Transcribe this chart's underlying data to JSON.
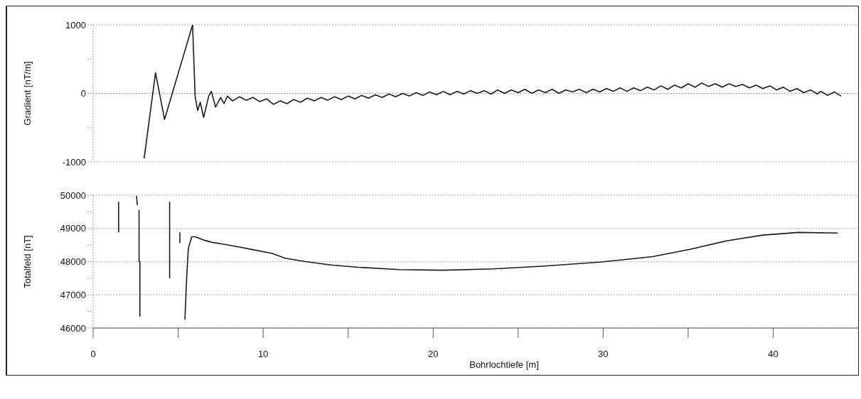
{
  "chart_data": [
    {
      "type": "line",
      "ylabel": "Gradient  [nT/m]",
      "xlim": [
        0,
        45
      ],
      "ylim": [
        -1000,
        1000
      ],
      "yticks": [
        -1000,
        {
          "value": -500,
          "label": null
        },
        0,
        {
          "value": 500,
          "label": null
        },
        1000
      ],
      "grid": "y",
      "tick_labels": "y",
      "legend": false,
      "series": [
        {
          "color": "#1a1a1a",
          "x": [
            3.0,
            3.67,
            4.2,
            5.85,
            6.0,
            6.15,
            6.3,
            6.5,
            6.8,
            6.95,
            7.2,
            7.5,
            7.7,
            7.9,
            8.2,
            8.6,
            9.0,
            9.4,
            9.8,
            10.2,
            10.6,
            11.0,
            11.4,
            11.8,
            12.2,
            12.6,
            13.0,
            13.4,
            13.8,
            14.2,
            14.6,
            15.0,
            15.4,
            15.8,
            16.2,
            16.6,
            17.0,
            17.4,
            17.8,
            18.2,
            18.6,
            19.0,
            19.4,
            19.8,
            20.2,
            20.6,
            21.0,
            21.4,
            21.8,
            22.2,
            22.6,
            23.0,
            23.4,
            23.8,
            24.2,
            24.6,
            25.0,
            25.4,
            25.8,
            26.2,
            26.6,
            27.0,
            27.4,
            27.8,
            28.2,
            28.6,
            29.0,
            29.4,
            29.8,
            30.2,
            30.6,
            31.0,
            31.4,
            31.8,
            32.2,
            32.6,
            33.0,
            33.4,
            33.8,
            34.2,
            34.6,
            35.0,
            35.4,
            35.8,
            36.2,
            36.6,
            37.0,
            37.4,
            37.8,
            38.2,
            38.6,
            39.0,
            39.4,
            39.8,
            40.2,
            40.6,
            41.0,
            41.4,
            41.8,
            42.2,
            42.6,
            42.8,
            43.2,
            43.6,
            44.0
          ],
          "values": [
            -950,
            300,
            -380,
            1000,
            -50,
            -250,
            -130,
            -350,
            -40,
            30,
            -200,
            -60,
            -150,
            -40,
            -110,
            -50,
            -100,
            -60,
            -120,
            -80,
            -160,
            -110,
            -150,
            -90,
            -130,
            -70,
            -110,
            -60,
            -100,
            -50,
            -90,
            -40,
            -80,
            -30,
            -70,
            -20,
            -60,
            -10,
            -50,
            0,
            -40,
            10,
            -30,
            20,
            -20,
            30,
            -20,
            30,
            -10,
            40,
            0,
            40,
            -10,
            50,
            0,
            50,
            10,
            60,
            0,
            50,
            10,
            60,
            0,
            50,
            20,
            60,
            10,
            60,
            20,
            70,
            30,
            80,
            30,
            80,
            40,
            90,
            50,
            110,
            60,
            120,
            80,
            140,
            90,
            150,
            100,
            140,
            90,
            140,
            100,
            130,
            80,
            120,
            70,
            110,
            50,
            90,
            30,
            70,
            10,
            50,
            -10,
            30,
            -30,
            20,
            -40
          ]
        }
      ]
    },
    {
      "type": "line",
      "ylabel": "Totalfeld [nT]",
      "xlabel": "Bohrlochtiefe [m]",
      "xlim": [
        0,
        45
      ],
      "xticks": [
        0,
        {
          "value": 5,
          "label": null
        },
        10,
        {
          "value": 15,
          "label": null
        },
        20,
        {
          "value": 25,
          "label": null
        },
        30,
        {
          "value": 35,
          "label": null
        },
        40
      ],
      "ylim": [
        46000,
        50000
      ],
      "yticks": [
        46000,
        {
          "value": 46500,
          "label": null
        },
        47000,
        {
          "value": 47500,
          "label": null
        },
        48000,
        {
          "value": 48500,
          "label": null
        },
        49000,
        {
          "value": 49500,
          "label": null
        },
        50000
      ],
      "grid": "y",
      "legend": false,
      "series": [
        {
          "color": "#1a1a1a",
          "x": [
            1.5,
            1.5,
            2.0,
            2.55,
            2.6,
            2.65,
            2.7,
            2.7,
            2.75,
            2.75,
            3.5,
            4.5,
            4.5,
            4.8,
            5.1,
            5.1,
            5.3,
            5.4,
            5.5,
            5.6,
            5.8,
            6.0,
            6.5,
            7.0,
            7.5,
            8.5,
            9.5,
            10.5,
            11.3,
            12.5,
            14.0,
            15.6,
            18.0,
            20.6,
            23.5,
            26.4,
            29.9,
            32.9,
            35.1,
            37.2,
            39.4,
            41.5,
            43.8
          ],
          "values": [
            49800,
            48880,
            null,
            49980,
            49700,
            null,
            49560,
            48000,
            48000,
            46350,
            null,
            49800,
            47500,
            null,
            48880,
            48560,
            null,
            46250,
            47500,
            48400,
            48750,
            48750,
            48650,
            48580,
            48540,
            48450,
            48350,
            48250,
            48100,
            48000,
            47900,
            47830,
            47760,
            47740,
            47780,
            47860,
            47990,
            48150,
            48370,
            48620,
            48800,
            48880,
            48860
          ]
        }
      ]
    }
  ]
}
